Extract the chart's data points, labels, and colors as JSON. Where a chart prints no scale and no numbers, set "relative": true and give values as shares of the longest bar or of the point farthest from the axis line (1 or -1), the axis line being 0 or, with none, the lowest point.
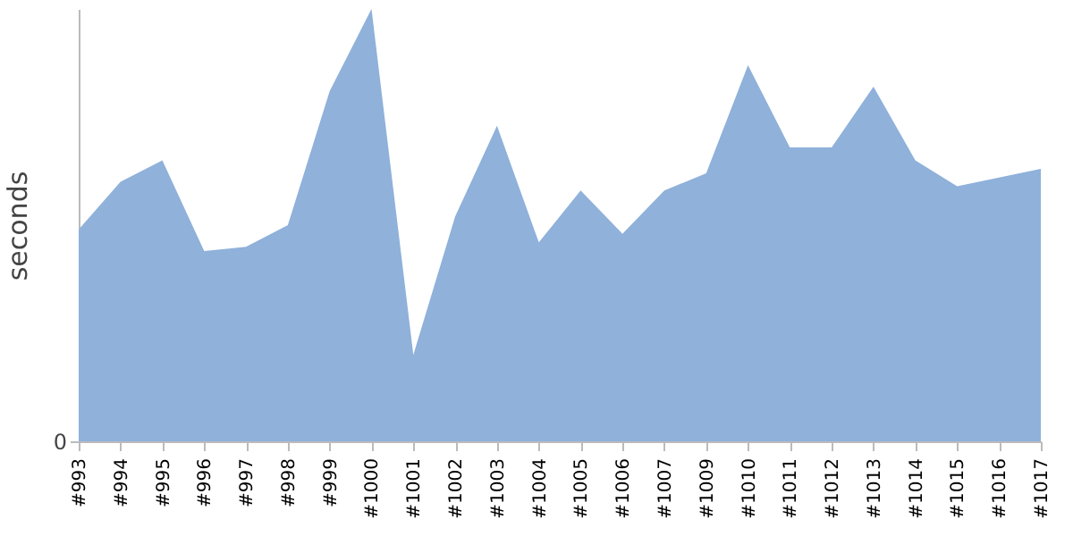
{
  "chart_data": {
    "type": "area",
    "ylabel": "seconds",
    "relative": true,
    "annotations": [
      "0"
    ],
    "grid": false,
    "categories": [
      "#993",
      "#994",
      "#995",
      "#996",
      "#997",
      "#998",
      "#999",
      "#1000",
      "#1001",
      "#1002",
      "#1003",
      "#1004",
      "#1005",
      "#1006",
      "#1007",
      "#1009",
      "#1010",
      "#1011",
      "#1012",
      "#1013",
      "#1014",
      "#1015",
      "#1016",
      "#1017"
    ],
    "series": [
      {
        "color": "#8fb1da",
        "values": [
          0.49,
          0.6,
          0.65,
          0.44,
          0.45,
          0.5,
          0.81,
          1,
          0.2,
          0.52,
          0.73,
          0.46,
          0.58,
          0.48,
          0.58,
          0.62,
          0.87,
          0.68,
          0.68,
          0.82,
          0.65,
          0.59,
          0.61,
          0.63
        ]
      }
    ]
  }
}
